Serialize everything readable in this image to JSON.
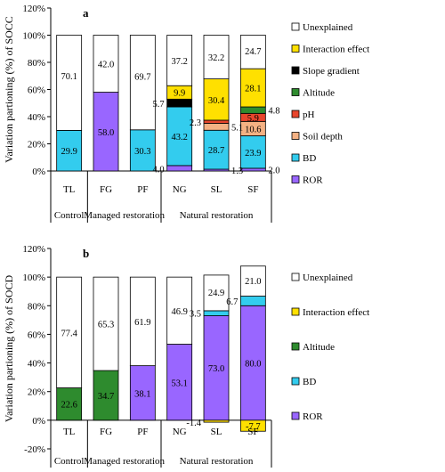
{
  "chart_data": [
    {
      "type": "bar",
      "stacked": true,
      "panel_label": "a",
      "ylabel": "Variation partioning (%) of SOCC",
      "ylim": [
        0,
        120
      ],
      "yticks": [
        "0%",
        "20%",
        "40%",
        "60%",
        "80%",
        "100%",
        "120%"
      ],
      "categories": [
        "TL",
        "FG",
        "PF",
        "NG",
        "SL",
        "SF"
      ],
      "groups": [
        {
          "label": "Control",
          "from": 0,
          "to": 0
        },
        {
          "label": "Managed restoration",
          "from": 1,
          "to": 2
        },
        {
          "label": "Natural restoration",
          "from": 3,
          "to": 5
        }
      ],
      "series": [
        {
          "name": "ROR",
          "color": "#9966ff",
          "values": [
            0,
            58.0,
            0,
            4.0,
            1.3,
            2.0
          ]
        },
        {
          "name": "BD",
          "color": "#33ccee",
          "values": [
            29.9,
            0,
            30.3,
            43.2,
            28.7,
            23.9
          ]
        },
        {
          "name": "Soil depth",
          "color": "#f4b183",
          "values": [
            0,
            0,
            0,
            0,
            5.1,
            10.6
          ]
        },
        {
          "name": "pH",
          "color": "#e8452c",
          "values": [
            0,
            0,
            0,
            0,
            2.3,
            5.9
          ]
        },
        {
          "name": "Altitude",
          "color": "#2e8b2e",
          "values": [
            0,
            0,
            0,
            0,
            0,
            4.8
          ]
        },
        {
          "name": "Slope gradient",
          "color": "#000000",
          "values": [
            0,
            0,
            0,
            5.7,
            0,
            0
          ]
        },
        {
          "name": "Interaction effect",
          "color": "#ffe000",
          "values": [
            0,
            0,
            0,
            9.9,
            30.4,
            28.1
          ]
        },
        {
          "name": "Unexplained",
          "color": "#ffffff",
          "values": [
            70.1,
            42.0,
            69.7,
            37.2,
            32.2,
            24.7
          ]
        }
      ],
      "labels": [
        {
          "text": "70.1",
          "cat": 0,
          "y": 70.1,
          "pos": "in"
        },
        {
          "text": "29.9",
          "cat": 0,
          "y": 15,
          "pos": "in"
        },
        {
          "text": "42.0",
          "cat": 1,
          "y": 79,
          "pos": "in"
        },
        {
          "text": "58.0",
          "cat": 1,
          "y": 29,
          "pos": "in"
        },
        {
          "text": "69.7",
          "cat": 2,
          "y": 69.7,
          "pos": "in"
        },
        {
          "text": "30.3",
          "cat": 2,
          "y": 15,
          "pos": "in"
        },
        {
          "text": "37.2",
          "cat": 3,
          "y": 81.4,
          "pos": "in"
        },
        {
          "text": "9.9",
          "cat": 3,
          "y": 58,
          "pos": "in"
        },
        {
          "text": "5.7",
          "cat": 3,
          "y": 50,
          "pos": "left"
        },
        {
          "text": "43.2",
          "cat": 3,
          "y": 25.6,
          "pos": "in"
        },
        {
          "text": "4.0",
          "cat": 3,
          "y": 1.5,
          "pos": "left"
        },
        {
          "text": "32.2",
          "cat": 4,
          "y": 83.9,
          "pos": "in"
        },
        {
          "text": "30.4",
          "cat": 4,
          "y": 52.6,
          "pos": "in"
        },
        {
          "text": "2.3",
          "cat": 4,
          "y": 36,
          "pos": "left"
        },
        {
          "text": "5.1",
          "cat": 4,
          "y": 32.5,
          "pos": "right"
        },
        {
          "text": "28.7",
          "cat": 4,
          "y": 15.7,
          "pos": "in"
        },
        {
          "text": "1.3",
          "cat": 4,
          "y": 0.5,
          "pos": "right"
        },
        {
          "text": "24.7",
          "cat": 5,
          "y": 88.5,
          "pos": "in"
        },
        {
          "text": "28.1",
          "cat": 5,
          "y": 61.3,
          "pos": "in"
        },
        {
          "text": "4.8",
          "cat": 5,
          "y": 44.9,
          "pos": "right"
        },
        {
          "text": "5.9",
          "cat": 5,
          "y": 39.4,
          "pos": "in"
        },
        {
          "text": "10.6",
          "cat": 5,
          "y": 31.2,
          "pos": "in"
        },
        {
          "text": "23.9",
          "cat": 5,
          "y": 13.9,
          "pos": "in"
        },
        {
          "text": "2.0",
          "cat": 5,
          "y": 1,
          "pos": "right"
        }
      ],
      "legend_order": [
        "Unexplained",
        "Interaction effect",
        "Slope gradient",
        "Altitude",
        "pH",
        "Soil depth",
        "BD",
        "ROR"
      ]
    },
    {
      "type": "bar",
      "stacked": true,
      "panel_label": "b",
      "ylabel": "Variation partioning (%) of SOCD",
      "ylim": [
        -20,
        120
      ],
      "yticks": [
        "-20%",
        "0%",
        "20%",
        "40%",
        "60%",
        "80%",
        "100%",
        "120%"
      ],
      "categories": [
        "TL",
        "FG",
        "PF",
        "NG",
        "SL",
        "SF"
      ],
      "groups": [
        {
          "label": "Control",
          "from": 0,
          "to": 0
        },
        {
          "label": "Managed restoration",
          "from": 1,
          "to": 2
        },
        {
          "label": "Natural restoration",
          "from": 3,
          "to": 5
        }
      ],
      "series": [
        {
          "name": "Altitude",
          "color": "#2e8b2e",
          "values": [
            22.6,
            34.7,
            0,
            0,
            0,
            0
          ]
        },
        {
          "name": "ROR",
          "color": "#9966ff",
          "values": [
            0,
            0,
            38.1,
            53.1,
            73.0,
            80.0
          ]
        },
        {
          "name": "BD",
          "color": "#33ccee",
          "values": [
            0,
            0,
            0,
            0,
            3.5,
            6.7
          ]
        },
        {
          "name": "Interaction effect",
          "color": "#ffe000",
          "values": [
            0,
            0,
            0,
            0,
            -1.4,
            -7.7
          ]
        },
        {
          "name": "Unexplained",
          "color": "#ffffff",
          "values": [
            77.4,
            65.3,
            61.9,
            46.9,
            24.9,
            21.0
          ]
        }
      ],
      "labels": [
        {
          "text": "77.4",
          "cat": 0,
          "y": 61.3,
          "pos": "in"
        },
        {
          "text": "22.6",
          "cat": 0,
          "y": 11.3,
          "pos": "in"
        },
        {
          "text": "65.3",
          "cat": 1,
          "y": 67.3,
          "pos": "in"
        },
        {
          "text": "34.7",
          "cat": 1,
          "y": 17.4,
          "pos": "in"
        },
        {
          "text": "61.9",
          "cat": 2,
          "y": 69,
          "pos": "in"
        },
        {
          "text": "38.1",
          "cat": 2,
          "y": 19,
          "pos": "in"
        },
        {
          "text": "46.9",
          "cat": 3,
          "y": 76.5,
          "pos": "in"
        },
        {
          "text": "53.1",
          "cat": 3,
          "y": 26.5,
          "pos": "in"
        },
        {
          "text": "24.9",
          "cat": 4,
          "y": 89.5,
          "pos": "in"
        },
        {
          "text": "3.5",
          "cat": 4,
          "y": 74.8,
          "pos": "left"
        },
        {
          "text": "73.0",
          "cat": 4,
          "y": 36.5,
          "pos": "in"
        },
        {
          "text": "-1.4",
          "cat": 4,
          "y": -1.2,
          "pos": "left"
        },
        {
          "text": "21.0",
          "cat": 5,
          "y": 97.5,
          "pos": "in"
        },
        {
          "text": "6.7",
          "cat": 5,
          "y": 83.4,
          "pos": "left"
        },
        {
          "text": "80.0",
          "cat": 5,
          "y": 40,
          "pos": "in"
        },
        {
          "text": "-7.7",
          "cat": 5,
          "y": -3.9,
          "pos": "in"
        }
      ],
      "legend_order": [
        "Unexplained",
        "Interaction effect",
        "Altitude",
        "BD",
        "ROR"
      ]
    }
  ]
}
